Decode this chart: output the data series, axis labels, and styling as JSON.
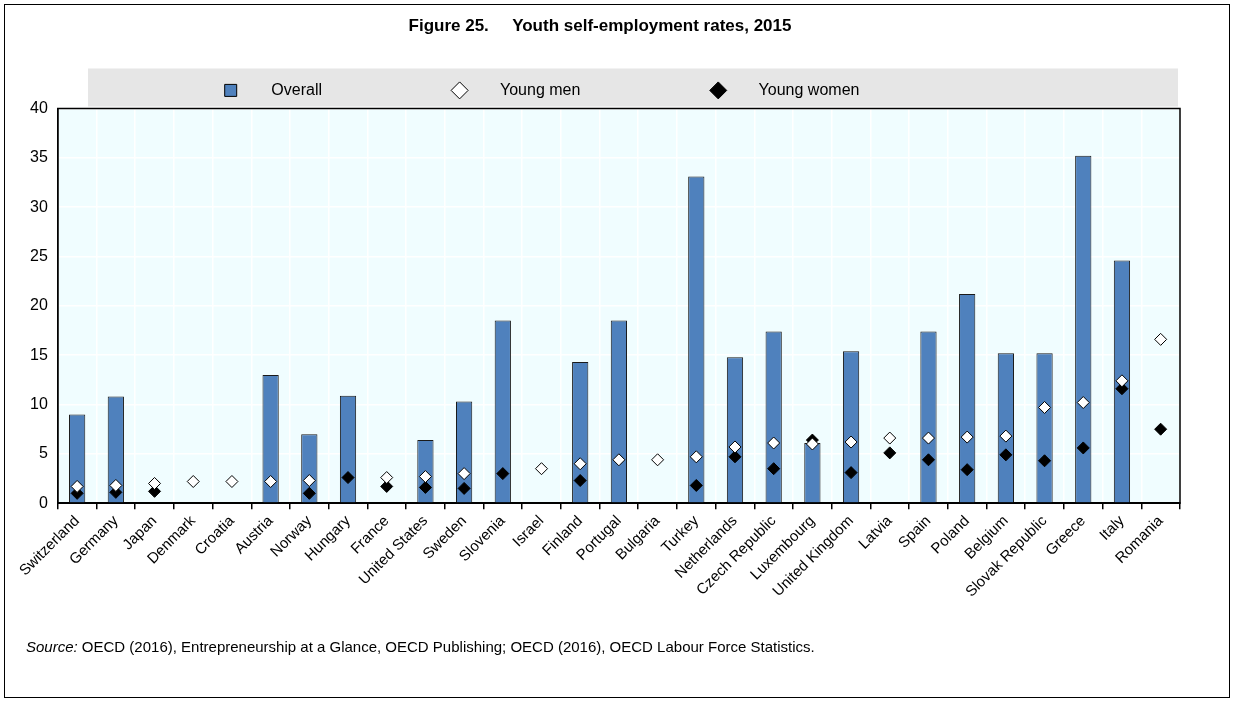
{
  "chart_data": {
    "type": "bar",
    "title": "Figure 25.     Youth self-employment rates, 2015",
    "categories": [
      "Switzerland",
      "Germany",
      "Japan",
      "Denmark",
      "Croatia",
      "Austria",
      "Norway",
      "Hungary",
      "France",
      "United States",
      "Sweden",
      "Slovenia",
      "Israel",
      "Finland",
      "Portugal",
      "Bulgaria",
      "Turkey",
      "Netherlands",
      "Czech Republic",
      "Luxembourg",
      "United Kingdom",
      "Latvia",
      "Spain",
      "Poland",
      "Belgium",
      "Slovak Republic",
      "Greece",
      "Italy",
      "Romania"
    ],
    "series": [
      {
        "name": "Overall",
        "color": "#4f81bd",
        "values": [
          9.0,
          10.8,
          null,
          null,
          null,
          13.0,
          7.0,
          10.9,
          null,
          6.4,
          10.3,
          18.5,
          null,
          14.3,
          18.5,
          null,
          33.1,
          14.8,
          17.4,
          6.1,
          15.4,
          null,
          17.4,
          21.2,
          15.2,
          15.2,
          35.2,
          24.6,
          null
        ]
      },
      {
        "name": "Young men",
        "type": "scatter",
        "color": "#ffffff",
        "x": [
          "Switzerland",
          "Germany",
          "Japan",
          "Denmark",
          "Croatia",
          "Austria",
          "Norway",
          "Hungary",
          "France",
          "United States",
          "Sweden",
          "Slovenia",
          "Israel",
          "Finland",
          "Portugal",
          "Bulgaria",
          "Turkey",
          "Netherlands",
          "Czech Republic",
          "Luxembourg",
          "United Kingdom",
          "Latvia",
          "Spain",
          "Poland",
          "Belgium",
          "Slovak Republic",
          "Greece",
          "Italy",
          "Romania"
        ],
        "values": [
          1.7,
          1.8,
          2.0,
          2.2,
          2.2,
          2.2,
          2.3,
          null,
          2.6,
          2.7,
          3.0,
          null,
          3.5,
          4.0,
          4.4,
          4.4,
          4.7,
          5.7,
          6.1,
          6.0,
          6.2,
          6.6,
          6.6,
          6.7,
          6.8,
          9.7,
          10.2,
          12.4,
          16.6
        ]
      },
      {
        "name": "Young women",
        "type": "scatter",
        "color": "#000000",
        "x": [
          "Switzerland",
          "Germany",
          "Japan",
          "Denmark",
          "Croatia",
          "Austria",
          "Norway",
          "Hungary",
          "France",
          "United States",
          "Sweden",
          "Slovenia",
          "Israel",
          "Finland",
          "Portugal",
          "Bulgaria",
          "Turkey",
          "Netherlands",
          "Czech Republic",
          "Luxembourg",
          "United Kingdom",
          "Latvia",
          "Spain",
          "Poland",
          "Belgium",
          "Slovak Republic",
          "Greece",
          "Italy",
          "Romania"
        ],
        "values": [
          1.0,
          1.1,
          1.2,
          null,
          null,
          null,
          1.0,
          2.6,
          1.7,
          1.6,
          1.5,
          3.0,
          null,
          2.3,
          null,
          null,
          1.8,
          4.7,
          3.5,
          6.4,
          3.1,
          5.1,
          4.4,
          3.4,
          4.9,
          4.3,
          5.6,
          11.6,
          7.5
        ]
      }
    ],
    "ylim": [
      0,
      40
    ],
    "yticks": [
      0,
      5,
      10,
      15,
      20,
      25,
      30,
      35,
      40
    ],
    "grid": true,
    "legend": "top",
    "marker": "diamond",
    "annotations": [
      "Source: OECD (2016), Entrepreneurship at a Glance, OECD Publishing; OECD (2016), OECD Labour Force Statistics."
    ]
  }
}
